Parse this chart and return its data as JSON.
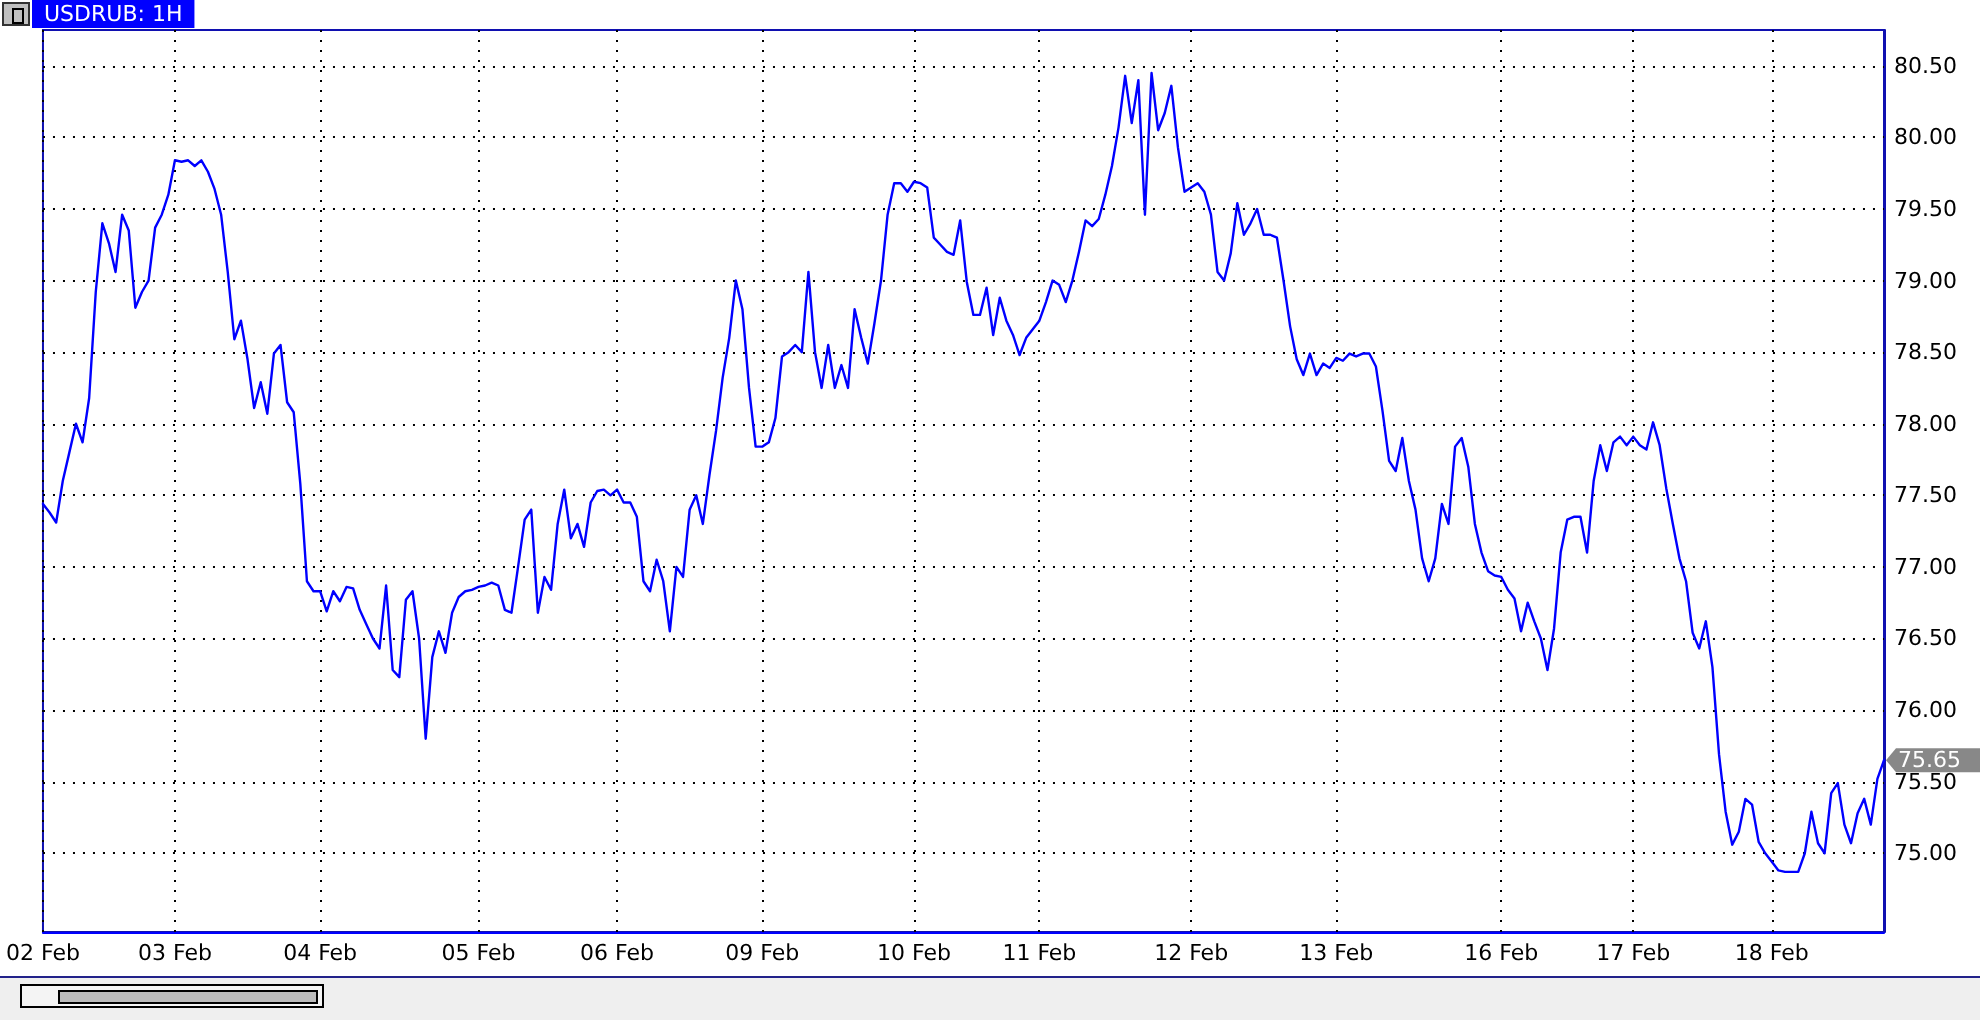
{
  "chart_data": {
    "type": "line",
    "title": "USDRUB: 1H",
    "color": "#0000ff",
    "grid": true,
    "marker": "none",
    "line_style": "solid",
    "categories": [
      "02 Feb",
      null,
      null,
      null,
      null,
      null,
      null,
      null,
      null,
      null,
      null,
      null,
      null,
      null,
      null,
      null,
      null,
      null,
      null,
      null,
      "03 Feb",
      null,
      null,
      null,
      null,
      null,
      null,
      null,
      null,
      null,
      null,
      null,
      null,
      null,
      null,
      null,
      null,
      null,
      null,
      null,
      null,
      null,
      "04 Feb",
      null,
      null,
      null,
      null,
      null,
      null,
      null,
      null,
      null,
      null,
      null,
      null,
      null,
      null,
      null,
      null,
      null,
      null,
      null,
      null,
      null,
      null,
      null,
      "05 Feb",
      null,
      null,
      null,
      null,
      null,
      null,
      null,
      null,
      null,
      null,
      null,
      null,
      null,
      null,
      null,
      null,
      null,
      null,
      null,
      null,
      "06 Feb",
      null,
      null,
      null,
      null,
      null,
      null,
      null,
      null,
      null,
      null,
      null,
      null,
      null,
      null,
      null,
      null,
      null,
      null,
      null,
      null,
      null,
      "09 Feb",
      null,
      null,
      null,
      null,
      null,
      null,
      null,
      null,
      null,
      null,
      null,
      null,
      null,
      null,
      null,
      null,
      null,
      null,
      null,
      null,
      null,
      null,
      "10 Feb",
      null,
      null,
      null,
      null,
      null,
      null,
      null,
      null,
      null,
      null,
      null,
      null,
      null,
      null,
      null,
      null,
      null,
      null,
      "11 Feb",
      null,
      null,
      null,
      null,
      null,
      null,
      null,
      null,
      null,
      null,
      null,
      null,
      null,
      null,
      null,
      null,
      null,
      null,
      null,
      null,
      null,
      null,
      "12 Feb",
      null,
      null,
      null,
      null,
      null,
      null,
      null,
      null,
      null,
      null,
      null,
      null,
      null,
      null,
      null,
      null,
      null,
      null,
      null,
      null,
      null,
      "13 Feb",
      null,
      null,
      null,
      null,
      null,
      null,
      null,
      null,
      null,
      null,
      null,
      null,
      null,
      null,
      null,
      null,
      null,
      null,
      null,
      null,
      null,
      null,
      null,
      null,
      "16 Feb",
      null,
      null,
      null,
      null,
      null,
      null,
      null,
      null,
      null,
      null,
      null,
      null,
      null,
      null,
      null,
      null,
      null,
      null,
      null,
      "17 Feb",
      null,
      null,
      null,
      null,
      null,
      null,
      null,
      null,
      null,
      null,
      null,
      null,
      null,
      null,
      null,
      null,
      null,
      null,
      null,
      null,
      "18 Feb",
      null,
      null,
      null,
      null,
      null,
      null,
      null,
      null,
      null,
      null,
      null,
      null,
      null,
      null,
      null,
      null,
      null
    ],
    "ylim": [
      74.45,
      80.75
    ],
    "yticks": [
      {
        "value": 75,
        "label": "75.00"
      },
      {
        "value": 75.5,
        "label": "75.50"
      },
      {
        "value": 76,
        "label": "76.00"
      },
      {
        "value": 76.5,
        "label": "76.50"
      },
      {
        "value": 77,
        "label": "77.00"
      },
      {
        "value": 77.5,
        "label": "77.50"
      },
      {
        "value": 78,
        "label": "78.00"
      },
      {
        "value": 78.5,
        "label": "78.50"
      },
      {
        "value": 79,
        "label": "79.00"
      },
      {
        "value": 79.5,
        "label": "79.50"
      },
      {
        "value": 80,
        "label": "80.00"
      },
      {
        "value": 80.5,
        "label": "80.50"
      }
    ],
    "annotations": [
      "75.65"
    ],
    "values": [
      77.44,
      77.38,
      77.31,
      77.6,
      77.8,
      78.0,
      77.87,
      78.18,
      78.92,
      79.4,
      79.26,
      79.06,
      79.46,
      79.35,
      78.81,
      78.92,
      79.0,
      79.37,
      79.46,
      79.6,
      79.84,
      79.83,
      79.84,
      79.8,
      79.84,
      79.76,
      79.64,
      79.46,
      79.06,
      78.59,
      78.72,
      78.45,
      78.11,
      78.29,
      78.07,
      78.49,
      78.55,
      78.15,
      78.08,
      77.58,
      76.9,
      76.83,
      76.83,
      76.69,
      76.83,
      76.76,
      76.86,
      76.85,
      76.7,
      76.6,
      76.5,
      76.43,
      76.87,
      76.28,
      76.23,
      76.77,
      76.83,
      76.5,
      75.8,
      76.37,
      76.55,
      76.4,
      76.68,
      76.79,
      76.83,
      76.84,
      76.86,
      76.87,
      76.89,
      76.87,
      76.7,
      76.68,
      77.0,
      77.33,
      77.4,
      76.68,
      76.93,
      76.84,
      77.3,
      77.54,
      77.2,
      77.3,
      77.14,
      77.45,
      77.53,
      77.54,
      77.5,
      77.54,
      77.45,
      77.45,
      77.35,
      76.9,
      76.83,
      77.05,
      76.9,
      76.55,
      77.0,
      76.93,
      77.4,
      77.5,
      77.3,
      77.64,
      77.95,
      78.32,
      78.6,
      79.0,
      78.8,
      78.25,
      77.84,
      77.84,
      77.87,
      78.04,
      78.47,
      78.5,
      78.55,
      78.5,
      79.06,
      78.5,
      78.25,
      78.55,
      78.25,
      78.41,
      78.25,
      78.8,
      78.6,
      78.42,
      78.7,
      79.0,
      79.46,
      79.68,
      79.68,
      79.62,
      79.69,
      79.68,
      79.65,
      79.3,
      79.25,
      79.2,
      79.18,
      79.42,
      78.99,
      78.76,
      78.76,
      78.95,
      78.62,
      78.88,
      78.72,
      78.62,
      78.48,
      78.6,
      78.66,
      78.72,
      78.85,
      79.0,
      78.97,
      78.85,
      79.0,
      79.2,
      79.42,
      79.38,
      79.43,
      79.6,
      79.8,
      80.07,
      80.43,
      80.1,
      80.4,
      79.46,
      80.45,
      80.05,
      80.17,
      80.36,
      79.93,
      79.62,
      79.65,
      79.68,
      79.62,
      79.46,
      79.06,
      79.0,
      79.19,
      79.54,
      79.32,
      79.4,
      79.5,
      79.32,
      79.32,
      79.3,
      79.0,
      78.68,
      78.45,
      78.34,
      78.49,
      78.34,
      78.42,
      78.39,
      78.46,
      78.44,
      78.49,
      78.47,
      78.49,
      78.49,
      78.4,
      78.09,
      77.74,
      77.67,
      77.9,
      77.6,
      77.4,
      77.06,
      76.9,
      77.06,
      77.44,
      77.3,
      77.84,
      77.9,
      77.7,
      77.3,
      77.1,
      76.97,
      76.94,
      76.93,
      76.84,
      76.78,
      76.55,
      76.75,
      76.62,
      76.5,
      76.28,
      76.57,
      77.1,
      77.33,
      77.35,
      77.35,
      77.1,
      77.6,
      77.85,
      77.67,
      77.87,
      77.91,
      77.85,
      77.91,
      77.85,
      77.82,
      78.01,
      77.85,
      77.55,
      77.3,
      77.06,
      76.9,
      76.54,
      76.43,
      76.62,
      76.3,
      75.69,
      75.29,
      75.06,
      75.15,
      75.38,
      75.34,
      75.08,
      75.0,
      74.94,
      74.88,
      74.87,
      74.87,
      74.87,
      75.0,
      75.29,
      75.07,
      75.0,
      75.42,
      75.49,
      75.2,
      75.07,
      75.28,
      75.38,
      75.2,
      75.52,
      75.65
    ]
  }
}
